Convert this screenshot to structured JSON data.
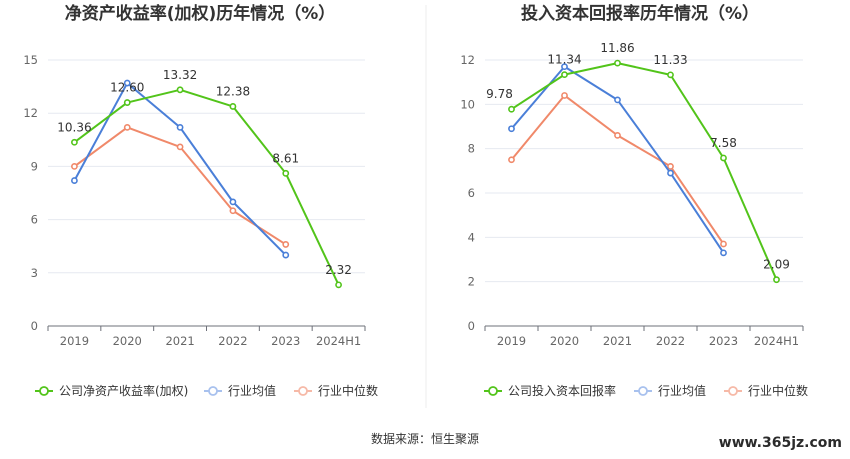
{
  "source_label": "数据来源：恒生聚源",
  "watermark": "www.365jz.com",
  "chart_data": [
    {
      "type": "line",
      "title": "净资产收益率(加权)历年情况（%）",
      "categories": [
        "2019",
        "2020",
        "2021",
        "2022",
        "2023",
        "2024H1"
      ],
      "ylim": [
        0,
        15
      ],
      "yticks": [
        0,
        3,
        6,
        9,
        12,
        15
      ],
      "grid": true,
      "legend_position": "bottom",
      "series": [
        {
          "name": "公司净资产收益率(加权)",
          "color": "#52c41a",
          "values": [
            10.36,
            12.6,
            13.32,
            12.38,
            8.61,
            2.32
          ],
          "labels": [
            "10.36",
            "12.60",
            "13.32",
            "12.38",
            "8.61",
            "2.32"
          ]
        },
        {
          "name": "行业均值",
          "color": "#4a7fd8",
          "values": [
            8.2,
            13.7,
            11.2,
            7.0,
            4.0,
            null
          ]
        },
        {
          "name": "行业中位数",
          "color": "#f0896a",
          "values": [
            9.0,
            11.2,
            10.1,
            6.5,
            4.6,
            null
          ]
        }
      ]
    },
    {
      "type": "line",
      "title": "投入资本回报率历年情况（%）",
      "categories": [
        "2019",
        "2020",
        "2021",
        "2022",
        "2023",
        "2024H1"
      ],
      "ylim": [
        0,
        12
      ],
      "yticks": [
        0,
        2,
        4,
        6,
        8,
        10,
        12
      ],
      "grid": true,
      "legend_position": "bottom",
      "series": [
        {
          "name": "公司投入资本回报率",
          "color": "#52c41a",
          "values": [
            9.78,
            11.34,
            11.86,
            11.33,
            7.58,
            2.09
          ],
          "labels": [
            "9.78",
            "11.34",
            "11.86",
            "11.33",
            "7.58",
            "2.09"
          ]
        },
        {
          "name": "行业均值",
          "color": "#4a7fd8",
          "values": [
            8.9,
            11.7,
            10.2,
            6.9,
            3.3,
            null
          ]
        },
        {
          "name": "行业中位数",
          "color": "#f0896a",
          "values": [
            7.5,
            10.4,
            8.6,
            7.2,
            3.7,
            null
          ]
        }
      ]
    }
  ]
}
